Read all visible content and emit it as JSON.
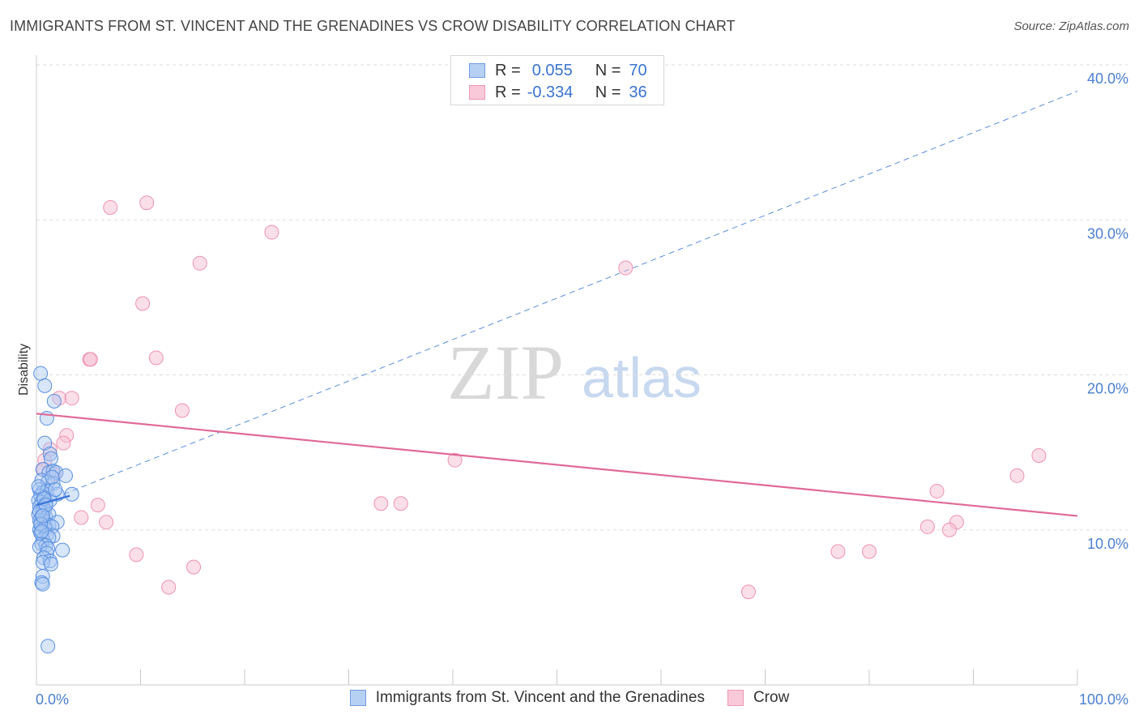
{
  "header": {
    "title": "IMMIGRANTS FROM ST. VINCENT AND THE GRENADINES VS CROW DISABILITY CORRELATION CHART",
    "source": "Source: ZipAtlas.com"
  },
  "watermark": {
    "zip": "ZIP",
    "atlas": "atlas"
  },
  "colors": {
    "blue_fill": "#a8c8f2",
    "blue_stroke": "#5a8fe0",
    "blue_line": "#3d78d8",
    "pink_fill": "#f7bfd2",
    "pink_stroke": "#ee92b2",
    "pink_line": "#e06a98",
    "grid": "#dddddd",
    "tick_text": "#4a7fd0"
  },
  "legend_top": {
    "rows": [
      {
        "r_label": "R =",
        "r_value": "0.055",
        "n_label": "N =",
        "n_value": "70"
      },
      {
        "r_label": "R =",
        "r_value": "-0.334",
        "n_label": "N =",
        "n_value": "36"
      }
    ]
  },
  "legend_bottom": {
    "items": [
      {
        "label": "Immigrants from St. Vincent and the Grenadines"
      },
      {
        "label": "Crow"
      }
    ]
  },
  "chart_data": {
    "type": "scatter",
    "title": "IMMIGRANTS FROM ST. VINCENT AND THE GRENADINES VS CROW DISABILITY CORRELATION CHART",
    "xlabel": "",
    "ylabel": "Disability",
    "xlim": [
      0,
      100
    ],
    "ylim": [
      0,
      40
    ],
    "x_tick_labels": [
      {
        "value": 0,
        "label": "0.0%"
      },
      {
        "value": 100,
        "label": "100.0%"
      }
    ],
    "y_tick_labels": [
      {
        "value": 10,
        "label": "10.0%"
      },
      {
        "value": 20,
        "label": "20.0%"
      },
      {
        "value": 30,
        "label": "30.0%"
      },
      {
        "value": 40,
        "label": "40.0%"
      }
    ],
    "grid": "horizontal dashed",
    "legend_placement": "bottom",
    "series": [
      {
        "name": "Immigrants from St. Vincent and the Grenadines",
        "color": "#a8c8f2",
        "points": [
          [
            0.4,
            20.1
          ],
          [
            0.8,
            19.3
          ],
          [
            1.7,
            18.3
          ],
          [
            1.0,
            17.2
          ],
          [
            0.8,
            15.6
          ],
          [
            1.3,
            14.9
          ],
          [
            1.4,
            14.6
          ],
          [
            0.6,
            13.9
          ],
          [
            1.2,
            13.7
          ],
          [
            1.6,
            13.8
          ],
          [
            1.9,
            13.7
          ],
          [
            2.8,
            13.5
          ],
          [
            0.5,
            13.2
          ],
          [
            1.1,
            13.1
          ],
          [
            1.6,
            13.0
          ],
          [
            0.3,
            12.6
          ],
          [
            0.6,
            12.4
          ],
          [
            1.0,
            12.5
          ],
          [
            0.4,
            12.2
          ],
          [
            0.7,
            12.1
          ],
          [
            2.0,
            12.3
          ],
          [
            3.4,
            12.3
          ],
          [
            0.2,
            11.9
          ],
          [
            0.5,
            11.8
          ],
          [
            0.9,
            11.7
          ],
          [
            1.3,
            11.9
          ],
          [
            0.3,
            11.5
          ],
          [
            0.6,
            11.4
          ],
          [
            0.8,
            11.3
          ],
          [
            0.2,
            11.0
          ],
          [
            0.5,
            10.9
          ],
          [
            0.9,
            10.8
          ],
          [
            1.2,
            11.0
          ],
          [
            0.3,
            10.6
          ],
          [
            0.7,
            10.6
          ],
          [
            0.4,
            10.3
          ],
          [
            0.9,
            10.2
          ],
          [
            1.2,
            10.3
          ],
          [
            2.0,
            10.5
          ],
          [
            0.3,
            10.0
          ],
          [
            0.8,
            10.1
          ],
          [
            1.5,
            10.2
          ],
          [
            0.4,
            9.8
          ],
          [
            1.0,
            9.7
          ],
          [
            1.6,
            9.6
          ],
          [
            0.6,
            9.4
          ],
          [
            1.2,
            9.5
          ],
          [
            0.5,
            9.1
          ],
          [
            0.9,
            9.0
          ],
          [
            0.3,
            8.9
          ],
          [
            1.1,
            8.8
          ],
          [
            2.5,
            8.7
          ],
          [
            1.0,
            8.5
          ],
          [
            0.7,
            8.2
          ],
          [
            1.3,
            8.0
          ],
          [
            0.6,
            7.9
          ],
          [
            1.4,
            7.8
          ],
          [
            0.6,
            7.0
          ],
          [
            0.5,
            6.6
          ],
          [
            0.6,
            6.5
          ],
          [
            1.1,
            2.5
          ],
          [
            0.2,
            12.8
          ],
          [
            0.3,
            11.2
          ],
          [
            0.4,
            10.4
          ],
          [
            0.5,
            9.9
          ],
          [
            0.7,
            12.0
          ],
          [
            1.5,
            13.4
          ],
          [
            0.9,
            11.6
          ],
          [
            1.8,
            12.6
          ],
          [
            0.6,
            10.9
          ]
        ]
      },
      {
        "name": "Crow",
        "color": "#f7bfd2",
        "points": [
          [
            7.1,
            30.8
          ],
          [
            10.6,
            31.1
          ],
          [
            22.6,
            29.2
          ],
          [
            15.7,
            27.2
          ],
          [
            56.6,
            26.9
          ],
          [
            10.2,
            24.6
          ],
          [
            5.1,
            21.0
          ],
          [
            5.2,
            21.0
          ],
          [
            11.5,
            21.1
          ],
          [
            2.2,
            18.5
          ],
          [
            3.4,
            18.5
          ],
          [
            14.0,
            17.7
          ],
          [
            2.9,
            16.1
          ],
          [
            2.6,
            15.6
          ],
          [
            1.3,
            15.2
          ],
          [
            0.8,
            14.5
          ],
          [
            40.2,
            14.5
          ],
          [
            0.7,
            13.9
          ],
          [
            1.7,
            13.6
          ],
          [
            96.3,
            14.8
          ],
          [
            94.2,
            13.5
          ],
          [
            86.5,
            12.5
          ],
          [
            33.1,
            11.7
          ],
          [
            35.0,
            11.7
          ],
          [
            5.9,
            11.6
          ],
          [
            4.3,
            10.8
          ],
          [
            6.7,
            10.5
          ],
          [
            88.4,
            10.5
          ],
          [
            85.6,
            10.2
          ],
          [
            87.7,
            10.0
          ],
          [
            77.0,
            8.6
          ],
          [
            80.0,
            8.6
          ],
          [
            9.6,
            8.4
          ],
          [
            15.1,
            7.6
          ],
          [
            12.7,
            6.3
          ],
          [
            68.4,
            6.0
          ]
        ]
      }
    ],
    "trendlines": [
      {
        "series": "Immigrants from St. Vincent and the Grenadines",
        "style": "solid",
        "x": [
          0,
          3.2
        ],
        "y": [
          11.6,
          12.2
        ]
      },
      {
        "series": "Immigrants from St. Vincent and the Grenadines",
        "style": "dashed",
        "x": [
          0,
          100
        ],
        "y": [
          11.6,
          38.3
        ]
      },
      {
        "series": "Crow",
        "style": "solid",
        "x": [
          0,
          100
        ],
        "y": [
          17.5,
          10.9
        ]
      }
    ]
  }
}
